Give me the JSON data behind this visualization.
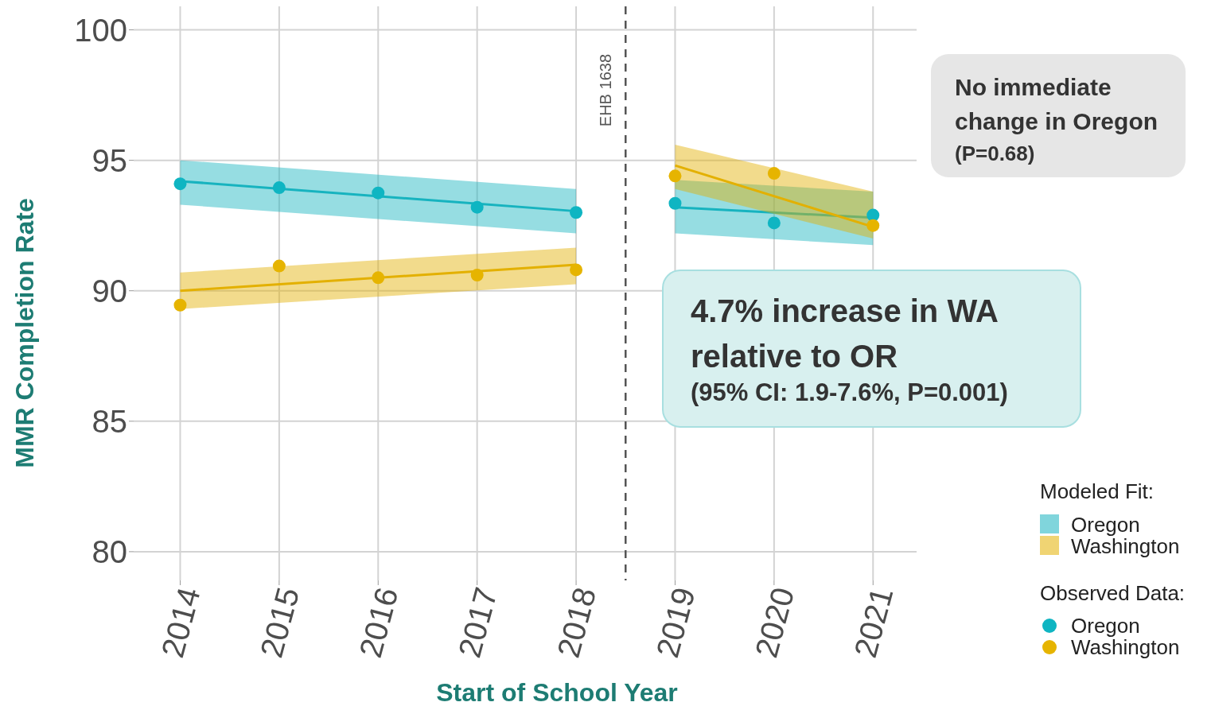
{
  "chart_data": {
    "type": "line",
    "xlabel": "Start of School Year",
    "ylabel": "MMR Completion Rate",
    "legend_title": "Modeled Fit:",
    "legend": "right",
    "grid": true,
    "xlim": [
      2013.53,
      2021.44
    ],
    "xticks": [
      2014,
      2015,
      2016,
      2017,
      2018,
      2019,
      2020,
      2021
    ],
    "ylim": [
      78.9,
      100.9
    ],
    "yticks": [
      80,
      85,
      90,
      95,
      100
    ],
    "series": [
      {
        "name": "Oregon",
        "marker": "none",
        "color": "#17b3bf",
        "x": [
          2014,
          2018
        ],
        "values": [
          94.2,
          93.05
        ],
        "lower": [
          93.3,
          92.2
        ],
        "upper": [
          95.0,
          93.9
        ]
      },
      {
        "name": "Washington",
        "marker": "none",
        "color": "#e3b000",
        "x": [
          2014,
          2018
        ],
        "values": [
          90.0,
          91.0
        ],
        "lower": [
          89.3,
          90.25
        ],
        "upper": [
          90.7,
          91.65
        ]
      },
      {
        "marker": "none",
        "color": "#17b3bf",
        "x": [
          2019,
          2021
        ],
        "values": [
          93.2,
          92.8
        ],
        "lower": [
          92.2,
          91.75
        ],
        "upper": [
          94.25,
          93.8
        ]
      },
      {
        "marker": "none",
        "color": "#e3b000",
        "x": [
          2019,
          2021
        ],
        "values": [
          94.8,
          92.45
        ],
        "lower": [
          93.9,
          92.0
        ],
        "upper": [
          95.6,
          93.8
        ]
      },
      {
        "name": "Oregon",
        "type": "scatter",
        "marker": "circle",
        "color": "#0fb5c2",
        "x": [
          2014,
          2015,
          2016,
          2017,
          2018,
          2019,
          2020,
          2021
        ],
        "values": [
          94.1,
          93.95,
          93.75,
          93.2,
          93.0,
          93.35,
          92.6,
          92.9
        ]
      },
      {
        "name": "Washington",
        "type": "scatter",
        "marker": "circle",
        "color": "#e6b400",
        "x": [
          2014,
          2015,
          2016,
          2017,
          2018,
          2019,
          2020,
          2021
        ],
        "values": [
          89.45,
          90.95,
          90.5,
          90.6,
          90.8,
          94.4,
          94.5,
          92.5
        ]
      }
    ],
    "ref_lines": [
      {
        "axis": "x",
        "value": 2018.5,
        "label": "EHB 1638",
        "line_style": "dashed",
        "color": "#555555"
      }
    ],
    "annotations": [
      "No immediate change in Oregon",
      "(P=0.68)",
      "4.7% increase in WA relative to OR",
      "(95% CI: 1.9-7.6%, P=0.001)",
      "Observed Data:"
    ]
  }
}
